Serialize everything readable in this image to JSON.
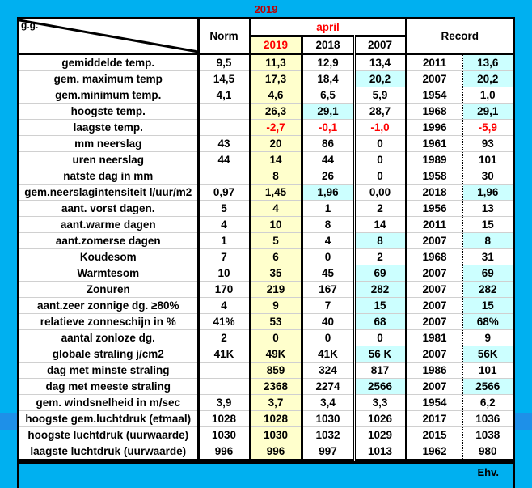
{
  "title": "2019",
  "header": {
    "corner_label": "g.g.",
    "norm": "Norm",
    "month": "april",
    "years": [
      "2019",
      "2018",
      "2007"
    ],
    "record": "Record"
  },
  "footer": "Ehv.",
  "colors": {
    "background": "#00B0F0",
    "current_year": "#FFFFCC",
    "highlight": "#CCFFFF",
    "negative": "#FF0000"
  },
  "rows": [
    {
      "label": "gemiddelde temp.",
      "norm": "9,5",
      "y2019": "11,3",
      "y2018": "12,9",
      "y2007": "13,4",
      "rec_year": "2011",
      "rec_value": "13,6",
      "hl": [
        "rec"
      ]
    },
    {
      "label": "gem. maximum temp",
      "norm": "14,5",
      "y2019": "17,3",
      "y2018": "18,4",
      "y2007": "20,2",
      "rec_year": "2007",
      "rec_value": "20,2",
      "hl": [
        "y2007",
        "rec"
      ]
    },
    {
      "label": "gem.minimum temp.",
      "norm": "4,1",
      "y2019": "4,6",
      "y2018": "6,5",
      "y2007": "5,9",
      "rec_year": "1954",
      "rec_value": "1,0",
      "hl": []
    },
    {
      "label": "hoogste temp.",
      "norm": "",
      "y2019": "26,3",
      "y2018": "29,1",
      "y2007": "28,7",
      "rec_year": "1968",
      "rec_value": "29,1",
      "hl": [
        "y2018",
        "rec"
      ]
    },
    {
      "label": "laagste temp.",
      "norm": "",
      "y2019": "-2,7",
      "y2018": "-0,1",
      "y2007": "-1,0",
      "rec_year": "1996",
      "rec_value": "-5,9",
      "hl": [],
      "red": true
    },
    {
      "label": "mm neerslag",
      "norm": "43",
      "y2019": "20",
      "y2018": "86",
      "y2007": "0",
      "rec_year": "1961",
      "rec_value": "93",
      "hl": []
    },
    {
      "label": "uren neerslag",
      "norm": "44",
      "y2019": "14",
      "y2018": "44",
      "y2007": "0",
      "rec_year": "1989",
      "rec_value": "101",
      "hl": []
    },
    {
      "label": "natste dag in mm",
      "norm": "",
      "y2019": "8",
      "y2018": "26",
      "y2007": "0",
      "rec_year": "1958",
      "rec_value": "30",
      "hl": []
    },
    {
      "label": "gem.neerslagintensiteit l/uur/m2",
      "norm": "0,97",
      "y2019": "1,45",
      "y2018": "1,96",
      "y2007": "0,00",
      "rec_year": "2018",
      "rec_value": "1,96",
      "hl": [
        "y2018",
        "rec"
      ]
    },
    {
      "label": "aant. vorst dagen.",
      "norm": "5",
      "y2019": "4",
      "y2018": "1",
      "y2007": "2",
      "rec_year": "1956",
      "rec_value": "13",
      "hl": []
    },
    {
      "label": "aant.warme dagen",
      "norm": "4",
      "y2019": "10",
      "y2018": "8",
      "y2007": "14",
      "rec_year": "2011",
      "rec_value": "15",
      "hl": []
    },
    {
      "label": "aant.zomerse dagen",
      "norm": "1",
      "y2019": "5",
      "y2018": "4",
      "y2007": "8",
      "rec_year": "2007",
      "rec_value": "8",
      "hl": [
        "y2007",
        "rec"
      ]
    },
    {
      "label": "Koudesom",
      "norm": "7",
      "y2019": "6",
      "y2018": "0",
      "y2007": "2",
      "rec_year": "1968",
      "rec_value": "31",
      "hl": []
    },
    {
      "label": "Warmtesom",
      "norm": "10",
      "y2019": "35",
      "y2018": "45",
      "y2007": "69",
      "rec_year": "2007",
      "rec_value": "69",
      "hl": [
        "y2007",
        "rec"
      ]
    },
    {
      "label": "Zonuren",
      "norm": "170",
      "y2019": "219",
      "y2018": "167",
      "y2007": "282",
      "rec_year": "2007",
      "rec_value": "282",
      "hl": [
        "y2007",
        "rec"
      ]
    },
    {
      "label": "aant.zeer zonnige dg. ≥80%",
      "norm": "4",
      "y2019": "9",
      "y2018": "7",
      "y2007": "15",
      "rec_year": "2007",
      "rec_value": "15",
      "hl": [
        "y2007",
        "rec"
      ]
    },
    {
      "label": "relatieve zonneschijn in %",
      "norm": "41%",
      "y2019": "53",
      "y2018": "40",
      "y2007": "68",
      "rec_year": "2007",
      "rec_value": "68%",
      "hl": [
        "y2007",
        "rec"
      ]
    },
    {
      "label": "aantal zonloze dg.",
      "norm": "2",
      "y2019": "0",
      "y2018": "0",
      "y2007": "0",
      "rec_year": "1981",
      "rec_value": "9",
      "hl": []
    },
    {
      "label": "globale straling j/cm2",
      "norm": "41K",
      "y2019": "49K",
      "y2018": "41K",
      "y2007": "56 K",
      "rec_year": "2007",
      "rec_value": "56K",
      "hl": [
        "y2007",
        "rec"
      ]
    },
    {
      "label": "dag met minste straling",
      "norm": "",
      "y2019": "859",
      "y2018": "324",
      "y2007": "817",
      "rec_year": "1986",
      "rec_value": "101",
      "hl": []
    },
    {
      "label": "dag met meeste straling",
      "norm": "",
      "y2019": "2368",
      "y2018": "2274",
      "y2007": "2566",
      "rec_year": "2007",
      "rec_value": "2566",
      "hl": [
        "y2007",
        "rec"
      ]
    },
    {
      "label": "gem. windsnelheid in m/sec",
      "norm": "3,9",
      "y2019": "3,7",
      "y2018": "3,4",
      "y2007": "3,3",
      "rec_year": "1954",
      "rec_value": "6,2",
      "hl": []
    },
    {
      "label": "hoogste gem.luchtdruk (etmaal)",
      "norm": "1028",
      "y2019": "1028",
      "y2018": "1030",
      "y2007": "1026",
      "rec_year": "2017",
      "rec_value": "1036",
      "hl": []
    },
    {
      "label": "hoogste luchtdruk (uurwaarde)",
      "norm": "1030",
      "y2019": "1030",
      "y2018": "1032",
      "y2007": "1029",
      "rec_year": "2015",
      "rec_value": "1038",
      "hl": []
    },
    {
      "label": "laagste luchtdruk (uurwaarde)",
      "norm": "996",
      "y2019": "996",
      "y2018": "997",
      "y2007": "1013",
      "rec_year": "1962",
      "rec_value": "980",
      "hl": []
    }
  ]
}
